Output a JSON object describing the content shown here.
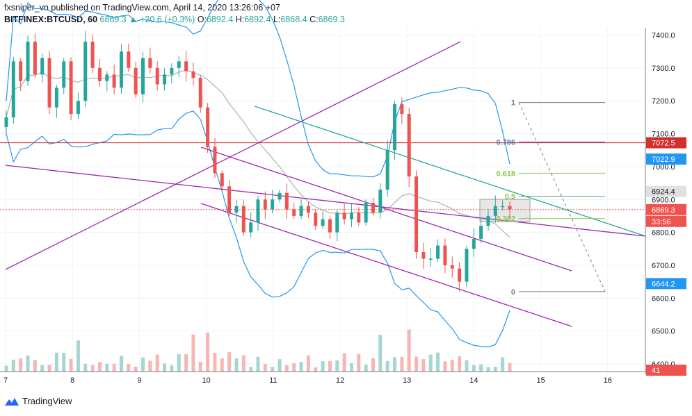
{
  "header": {
    "line1": "fxsniper_vn published on TradingView.com, April 14, 2020 13:26:06 +07",
    "symbol": "BITFINEX:BTCUSD, 60",
    "last": "6869.3",
    "change": "▲ +20.6 (+0.3%)",
    "o_label": "O:",
    "o": "6892.4",
    "h_label": "H:",
    "h": "6892.4",
    "l_label": "L:",
    "l": "6868.4",
    "c_label": "C:",
    "c": "6869.3"
  },
  "footer": {
    "brand": "TradingView"
  },
  "colors": {
    "up": "#26a69a",
    "down": "#ef5350",
    "band": "#2196f3",
    "channel": "#9c27b0",
    "trend": "#26a69a",
    "ma": "#b0b0b0",
    "level": "#d32f2f"
  },
  "chart_data": {
    "type": "line",
    "title": "",
    "xlabel": "",
    "ylabel": "",
    "x_ticks": [
      "7",
      "8",
      "9",
      "10",
      "11",
      "12",
      "13",
      "14",
      "15",
      "16"
    ],
    "y_ticks": [
      "6400.0",
      "6500.0",
      "6600.0",
      "6700.0",
      "6800.0",
      "6900.0",
      "7000.0",
      "7100.0",
      "7200.0",
      "7300.0",
      "7400.0"
    ],
    "ylim": [
      6380,
      7440
    ],
    "price_labels": [
      {
        "name": "resistance",
        "value": "7072.5",
        "color": "#d32f2f"
      },
      {
        "name": "upper-band",
        "value": "7022.9",
        "color": "#2196f3"
      },
      {
        "name": "ma",
        "value": "6924.4",
        "color": "#e0e0e0"
      },
      {
        "name": "last",
        "value": "6869.3",
        "color": "#ef5350"
      },
      {
        "name": "countdown",
        "value": "33:56",
        "color": "#ef5350"
      },
      {
        "name": "lower-band",
        "value": "6644.2",
        "color": "#2196f3"
      },
      {
        "name": "volume",
        "value": "41",
        "color": "#ef5350"
      }
    ],
    "fib_levels": [
      {
        "label": "1",
        "value": 7195
      },
      {
        "label": "0.786",
        "value": 7075
      },
      {
        "label": "0.618",
        "value": 6980
      },
      {
        "label": "0.5",
        "value": 6910
      },
      {
        "label": "0.382",
        "value": 6842
      },
      {
        "label": "0",
        "value": 6620
      }
    ],
    "close_series": [
      7150,
      7320,
      7260,
      7380,
      7280,
      7330,
      7180,
      7240,
      7320,
      7160,
      7200,
      7380,
      7300,
      7260,
      7280,
      7240,
      7350,
      7300,
      7220,
      7330,
      7300,
      7250,
      7280,
      7300,
      7320,
      7290,
      7270,
      7180,
      7060,
      6980,
      6940,
      6860,
      6880,
      6800,
      6830,
      6900,
      6870,
      6900,
      6920,
      6870,
      6850,
      6880,
      6860,
      6820,
      6840,
      6800,
      6860,
      6840,
      6860,
      6830,
      6890,
      6860,
      6930,
      7050,
      7190,
      7160,
      6970,
      6740,
      6720,
      6720,
      6760,
      6700,
      6690,
      6650,
      6750,
      6780,
      6820,
      6850,
      6880,
      6880,
      6870
    ]
  }
}
